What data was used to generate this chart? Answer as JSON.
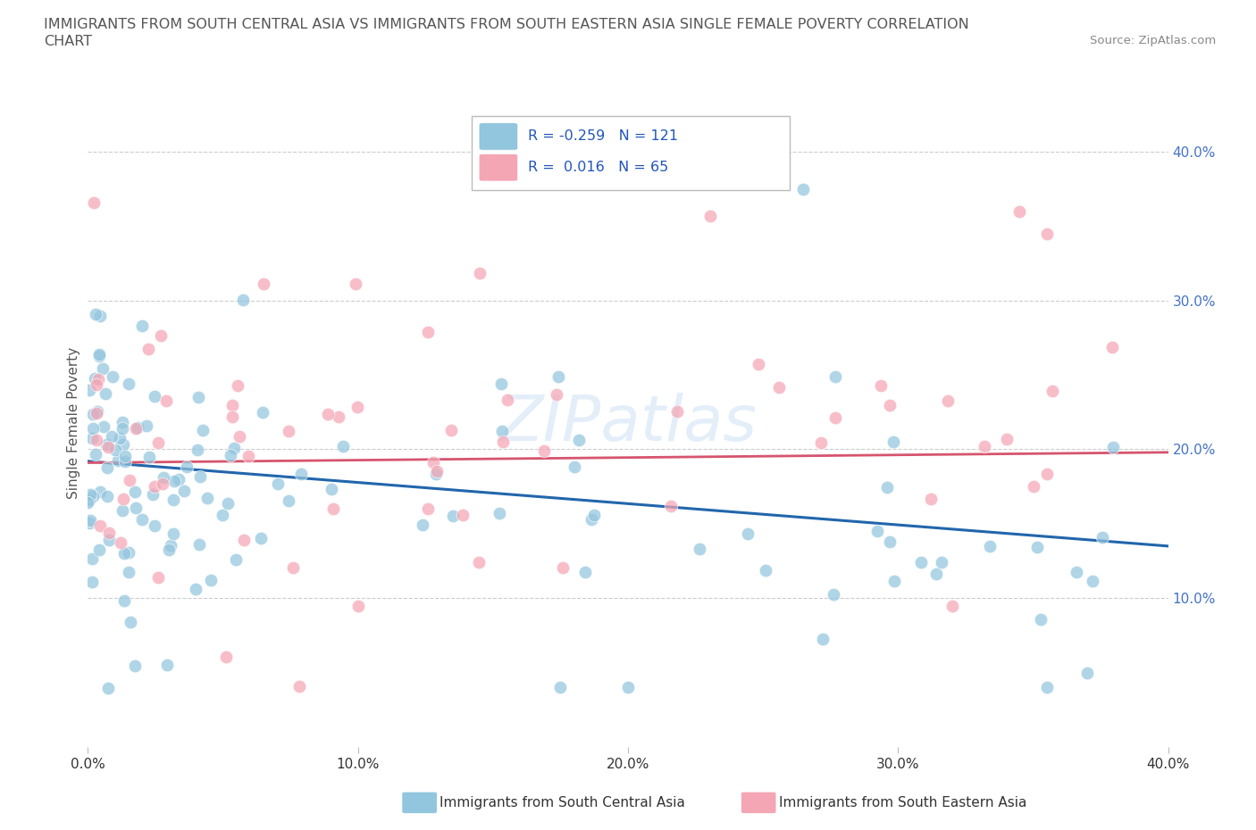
{
  "title_line1": "IMMIGRANTS FROM SOUTH CENTRAL ASIA VS IMMIGRANTS FROM SOUTH EASTERN ASIA SINGLE FEMALE POVERTY CORRELATION",
  "title_line2": "CHART",
  "source_text": "Source: ZipAtlas.com",
  "watermark": "ZIPatlas",
  "ylabel": "Single Female Poverty",
  "xlim": [
    0.0,
    0.4
  ],
  "ylim": [
    0.0,
    0.435
  ],
  "xticks": [
    0.0,
    0.1,
    0.2,
    0.3,
    0.4
  ],
  "yticks": [
    0.1,
    0.2,
    0.3,
    0.4
  ],
  "xtick_labels": [
    "0.0%",
    "10.0%",
    "20.0%",
    "30.0%",
    "40.0%"
  ],
  "ytick_labels": [
    "10.0%",
    "20.0%",
    "30.0%",
    "40.0%"
  ],
  "blue_color": "#92c5de",
  "pink_color": "#f4a6b5",
  "blue_line_color": "#2166ac",
  "pink_line_color": "#d6546e",
  "grid_color": "#cccccc",
  "background_color": "#ffffff",
  "title_color": "#555555",
  "source_color": "#888888"
}
